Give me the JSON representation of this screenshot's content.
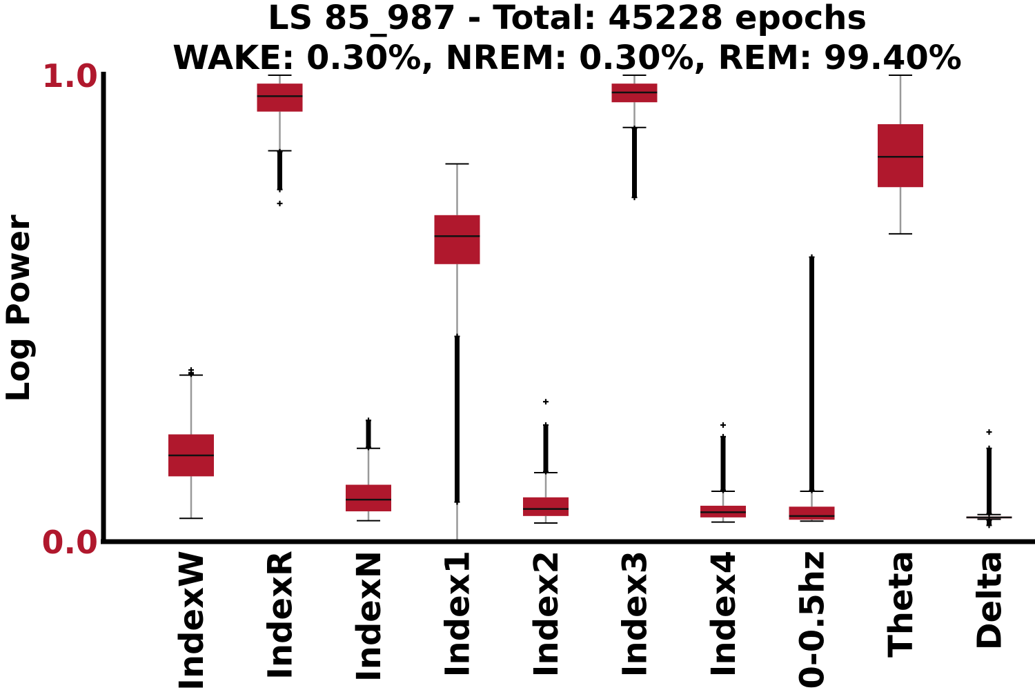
{
  "chart_data": {
    "type": "boxplot",
    "title_lines": [
      "LS 85_987 - Total: 45228 epochs",
      "WAKE: 0.30%, NREM: 0.30%, REM: 99.40%"
    ],
    "xlabel": "",
    "ylabel": "Log Power",
    "ylim": [
      0.0,
      1.0
    ],
    "y_ticks": [
      "0.0",
      "1.0"
    ],
    "grid": false,
    "colors": {
      "box": "#b0182d",
      "tick_label": "#b0182d",
      "median": "#111111",
      "whisker": "#999999",
      "outlier": "#000000",
      "axis": "#000000"
    },
    "categories": [
      "IndexW",
      "IndexR",
      "IndexN",
      "Index1",
      "Index2",
      "Index3",
      "Index4",
      "0-0.5hz",
      "Theta",
      "Delta"
    ],
    "boxes": [
      {
        "label": "IndexW",
        "whislo": 0.05,
        "q1": 0.14,
        "median": 0.185,
        "q3": 0.23,
        "whishi": 0.357,
        "fliers_lo": [],
        "fliers_hi": [
          0.359,
          0.362,
          0.368
        ]
      },
      {
        "label": "IndexR",
        "whislo": 0.838,
        "q1": 0.922,
        "median": 0.955,
        "q3": 0.982,
        "whishi": 1.0,
        "fliers_lo": {
          "from": 0.755,
          "to": 0.836,
          "extra": [
            0.725
          ]
        },
        "fliers_hi": []
      },
      {
        "label": "IndexN",
        "whislo": 0.045,
        "q1": 0.065,
        "median": 0.09,
        "q3": 0.122,
        "whishi": 0.2,
        "fliers_lo": [],
        "fliers_hi": {
          "from": 0.202,
          "to": 0.26
        }
      },
      {
        "label": "Index1",
        "whislo": 0.0,
        "q1": 0.595,
        "median": 0.655,
        "q3": 0.7,
        "whishi": 0.81,
        "fliers_lo": {
          "from": 0.085,
          "to": 0.44
        },
        "fliers_hi": []
      },
      {
        "label": "Index2",
        "whislo": 0.04,
        "q1": 0.055,
        "median": 0.07,
        "q3": 0.095,
        "whishi": 0.148,
        "fliers_lo": [],
        "fliers_hi": {
          "from": 0.15,
          "to": 0.25,
          "extra": [
            0.3
          ]
        }
      },
      {
        "label": "Index3",
        "whislo": 0.888,
        "q1": 0.942,
        "median": 0.963,
        "q3": 0.982,
        "whishi": 1.0,
        "fliers_lo": {
          "from": 0.738,
          "to": 0.886
        },
        "fliers_hi": []
      },
      {
        "label": "Index4",
        "whislo": 0.042,
        "q1": 0.052,
        "median": 0.063,
        "q3": 0.077,
        "whishi": 0.108,
        "fliers_lo": [],
        "fliers_hi": {
          "from": 0.11,
          "to": 0.225,
          "extra": [
            0.25
          ]
        }
      },
      {
        "label": "0-0.5hz",
        "whislo": 0.044,
        "q1": 0.047,
        "median": 0.055,
        "q3": 0.075,
        "whishi": 0.108,
        "fliers_lo": [],
        "fliers_hi": {
          "from": 0.11,
          "to": 0.61
        }
      },
      {
        "label": "Theta",
        "whislo": 0.66,
        "q1": 0.76,
        "median": 0.825,
        "q3": 0.895,
        "whishi": 1.0,
        "fliers_lo": [],
        "fliers_hi": []
      },
      {
        "label": "Delta",
        "whislo": 0.048,
        "q1": 0.05,
        "median": 0.052,
        "q3": 0.054,
        "whishi": 0.058,
        "fliers_lo": {
          "from": 0.035,
          "to": 0.046
        },
        "fliers_hi": {
          "from": 0.06,
          "to": 0.2,
          "extra": [
            0.235
          ]
        }
      }
    ]
  }
}
